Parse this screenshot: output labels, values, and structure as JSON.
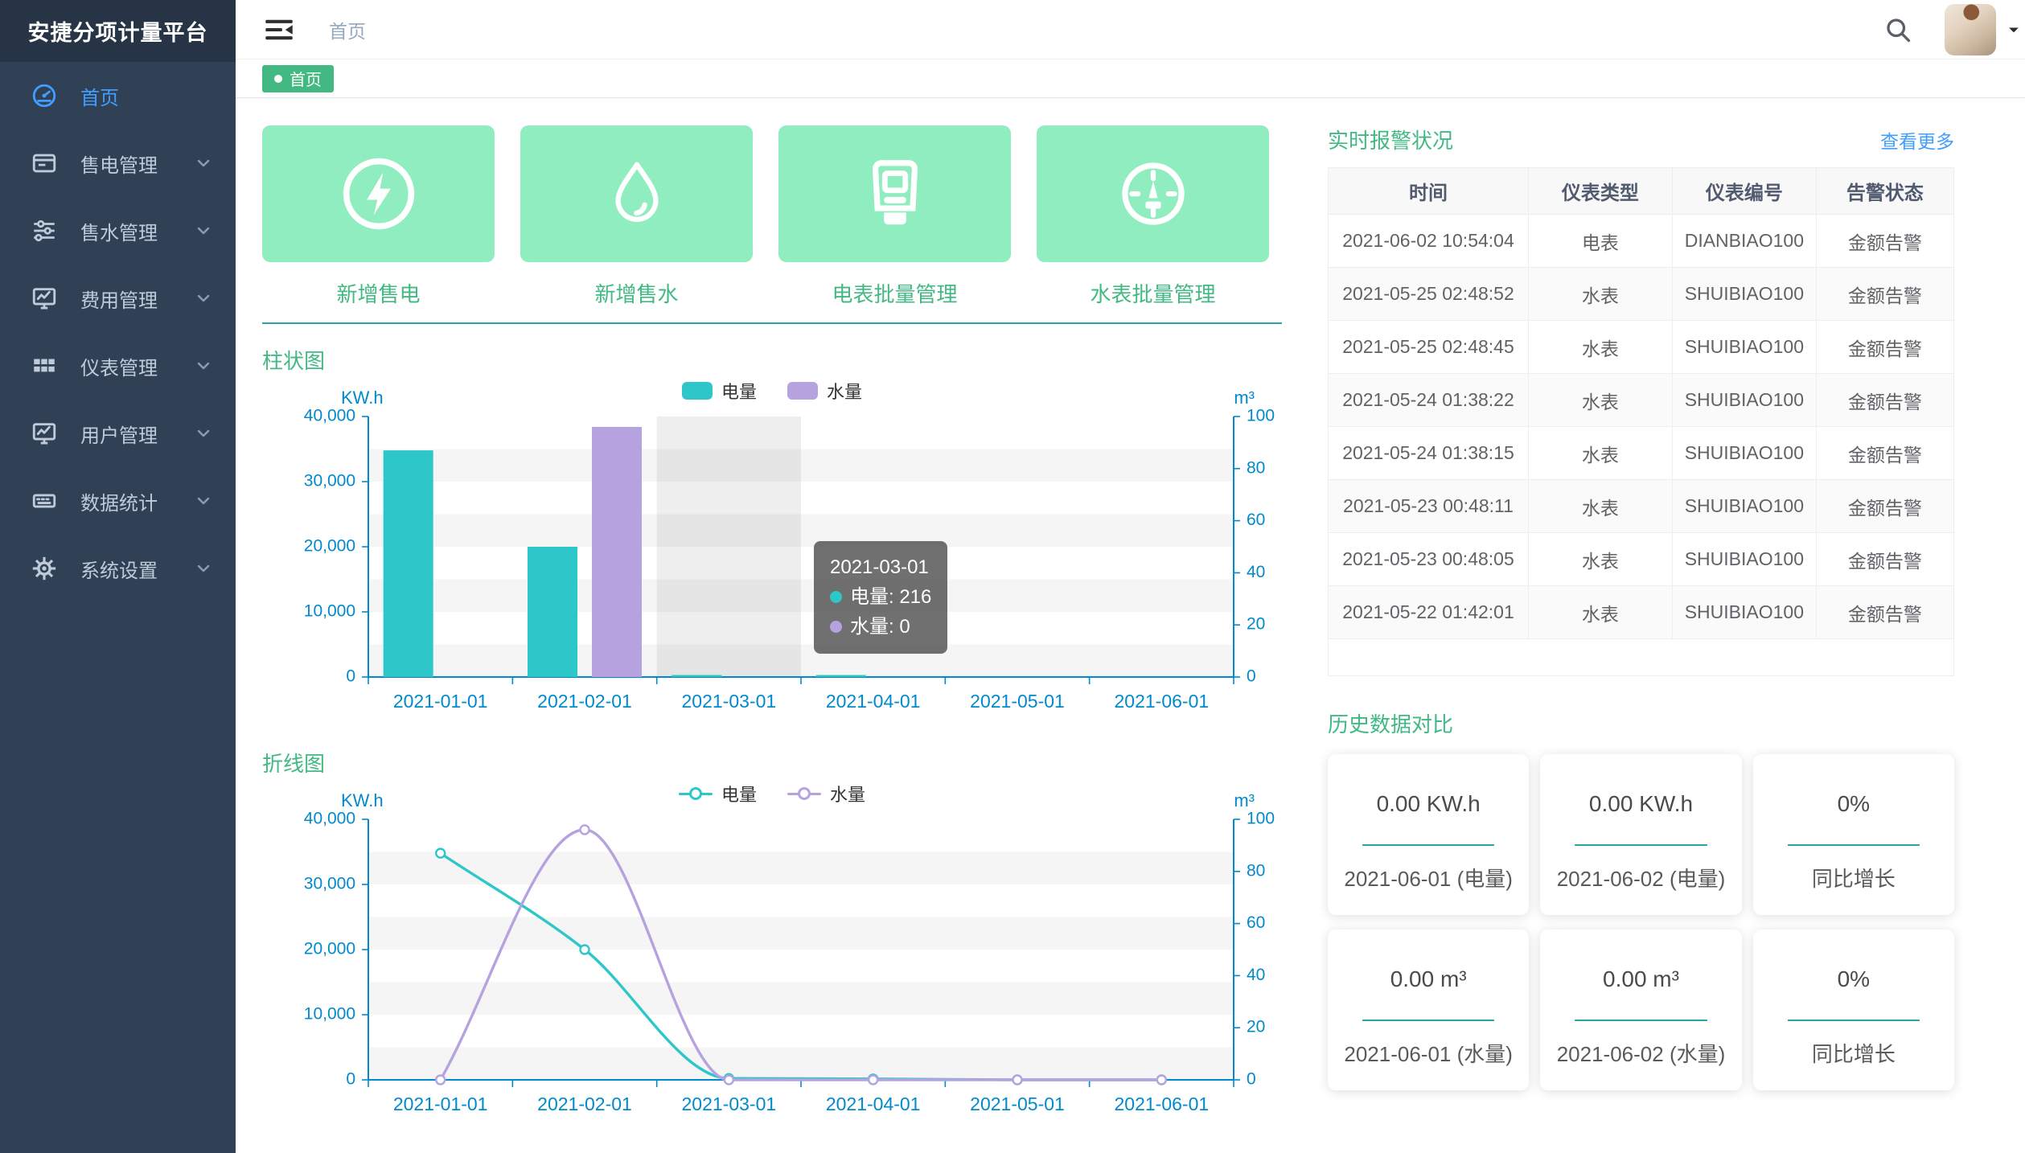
{
  "app": {
    "title": "安捷分项计量平台"
  },
  "colors": {
    "accent_green": "#42b983",
    "mint_card_bg": "#90edbf",
    "teal_series": "#2ec7c9",
    "purple_series": "#b6a2de",
    "axis_blue": "#008acd",
    "link_blue": "#409eff",
    "sidebar_bg": "#304156",
    "sidebar_logo_bg": "#263445",
    "sidebar_active": "#409eff",
    "divider_teal": "#2aa5a0",
    "tag_green": "#42b983"
  },
  "sidebar": {
    "logo": "安捷分项计量平台",
    "items": [
      {
        "id": "home",
        "label": "首页",
        "icon": "dashboard-icon",
        "active": true,
        "expandable": false
      },
      {
        "id": "electricity-sales",
        "label": "售电管理",
        "icon": "card-icon",
        "active": false,
        "expandable": true
      },
      {
        "id": "water-sales",
        "label": "售水管理",
        "icon": "sliders-icon",
        "active": false,
        "expandable": true
      },
      {
        "id": "fees",
        "label": "费用管理",
        "icon": "monitor-chart-icon",
        "active": false,
        "expandable": true
      },
      {
        "id": "meters",
        "label": "仪表管理",
        "icon": "grid-icon",
        "active": false,
        "expandable": true
      },
      {
        "id": "users",
        "label": "用户管理",
        "icon": "monitor-icon",
        "active": false,
        "expandable": true
      },
      {
        "id": "statistics",
        "label": "数据统计",
        "icon": "keyboard-icon",
        "active": false,
        "expandable": true
      },
      {
        "id": "settings",
        "label": "系统设置",
        "icon": "gear-icon",
        "active": false,
        "expandable": true
      }
    ]
  },
  "header": {
    "breadcrumb": "首页"
  },
  "tabs": {
    "active": "首页"
  },
  "quick_actions": [
    {
      "id": "add-electricity",
      "label": "新增售电",
      "icon": "lightning-circle-icon"
    },
    {
      "id": "add-water",
      "label": "新增售水",
      "icon": "water-drop-icon"
    },
    {
      "id": "electric-meter-batch",
      "label": "电表批量管理",
      "icon": "electric-meter-icon"
    },
    {
      "id": "water-meter-batch",
      "label": "水表批量管理",
      "icon": "gauge-icon"
    }
  ],
  "chart_data": [
    {
      "type": "bar",
      "title": "柱状图",
      "categories": [
        "2021-01-01",
        "2021-02-01",
        "2021-03-01",
        "2021-04-01",
        "2021-05-01",
        "2021-06-01"
      ],
      "series": [
        {
          "name": "电量",
          "axis": "left",
          "color": "#2ec7c9",
          "values": [
            34800,
            20000,
            216,
            150,
            0,
            0
          ]
        },
        {
          "name": "水量",
          "axis": "right",
          "color": "#b6a2de",
          "values": [
            0,
            96,
            0,
            0,
            0,
            0
          ]
        }
      ],
      "ylabel_left": "KW.h",
      "ylabel_right": "m³",
      "ylim_left": [
        0,
        40000
      ],
      "ylim_right": [
        0,
        100
      ],
      "yticks_left": [
        "0",
        "10,000",
        "20,000",
        "30,000",
        "40,000"
      ],
      "yticks_right": [
        "0",
        "20",
        "40",
        "60",
        "80",
        "100"
      ],
      "legend_position": "top-center",
      "grid": "split-area",
      "hover_category_index": 2,
      "tooltip": {
        "title": "2021-03-01",
        "items": [
          {
            "name": "电量",
            "value": "216",
            "color": "#2ec7c9"
          },
          {
            "name": "水量",
            "value": "0",
            "color": "#b6a2de"
          }
        ]
      }
    },
    {
      "type": "line",
      "title": "折线图",
      "smooth": true,
      "categories": [
        "2021-01-01",
        "2021-02-01",
        "2021-03-01",
        "2021-04-01",
        "2021-05-01",
        "2021-06-01"
      ],
      "series": [
        {
          "name": "电量",
          "axis": "left",
          "color": "#2ec7c9",
          "values": [
            34800,
            20000,
            216,
            150,
            0,
            0
          ]
        },
        {
          "name": "水量",
          "axis": "right",
          "color": "#b6a2de",
          "values": [
            0,
            96,
            0,
            0,
            0,
            0
          ]
        }
      ],
      "ylabel_left": "KW.h",
      "ylabel_right": "m³",
      "ylim_left": [
        0,
        40000
      ],
      "ylim_right": [
        0,
        100
      ],
      "yticks_left": [
        "0",
        "10,000",
        "20,000",
        "30,000",
        "40,000"
      ],
      "yticks_right": [
        "0",
        "20",
        "40",
        "60",
        "80",
        "100"
      ],
      "legend_position": "top-center",
      "grid": "split-area"
    }
  ],
  "alarm_table": {
    "title": "实时报警状况",
    "more_label": "查看更多",
    "columns": [
      "时间",
      "仪表类型",
      "仪表编号",
      "告警状态"
    ],
    "rows": [
      [
        "2021-06-02 10:54:04",
        "电表",
        "DIANBIAO100",
        "金额告警"
      ],
      [
        "2021-05-25 02:48:52",
        "水表",
        "SHUIBIAO100",
        "金额告警"
      ],
      [
        "2021-05-25 02:48:45",
        "水表",
        "SHUIBIAO100",
        "金额告警"
      ],
      [
        "2021-05-24 01:38:22",
        "水表",
        "SHUIBIAO100",
        "金额告警"
      ],
      [
        "2021-05-24 01:38:15",
        "水表",
        "SHUIBIAO100",
        "金额告警"
      ],
      [
        "2021-05-23 00:48:11",
        "水表",
        "SHUIBIAO100",
        "金额告警"
      ],
      [
        "2021-05-23 00:48:05",
        "水表",
        "SHUIBIAO100",
        "金额告警"
      ],
      [
        "2021-05-22 01:42:01",
        "水表",
        "SHUIBIAO100",
        "金额告警"
      ]
    ]
  },
  "history": {
    "title": "历史数据对比",
    "cards": [
      {
        "value": "0.00 KW.h",
        "label": "2021-06-01 (电量)"
      },
      {
        "value": "0.00 KW.h",
        "label": "2021-06-02 (电量)"
      },
      {
        "value": "0%",
        "label": "同比增长"
      },
      {
        "value": "0.00 m³",
        "label": "2021-06-01 (水量)"
      },
      {
        "value": "0.00 m³",
        "label": "2021-06-02 (水量)"
      },
      {
        "value": "0%",
        "label": "同比增长"
      }
    ]
  }
}
